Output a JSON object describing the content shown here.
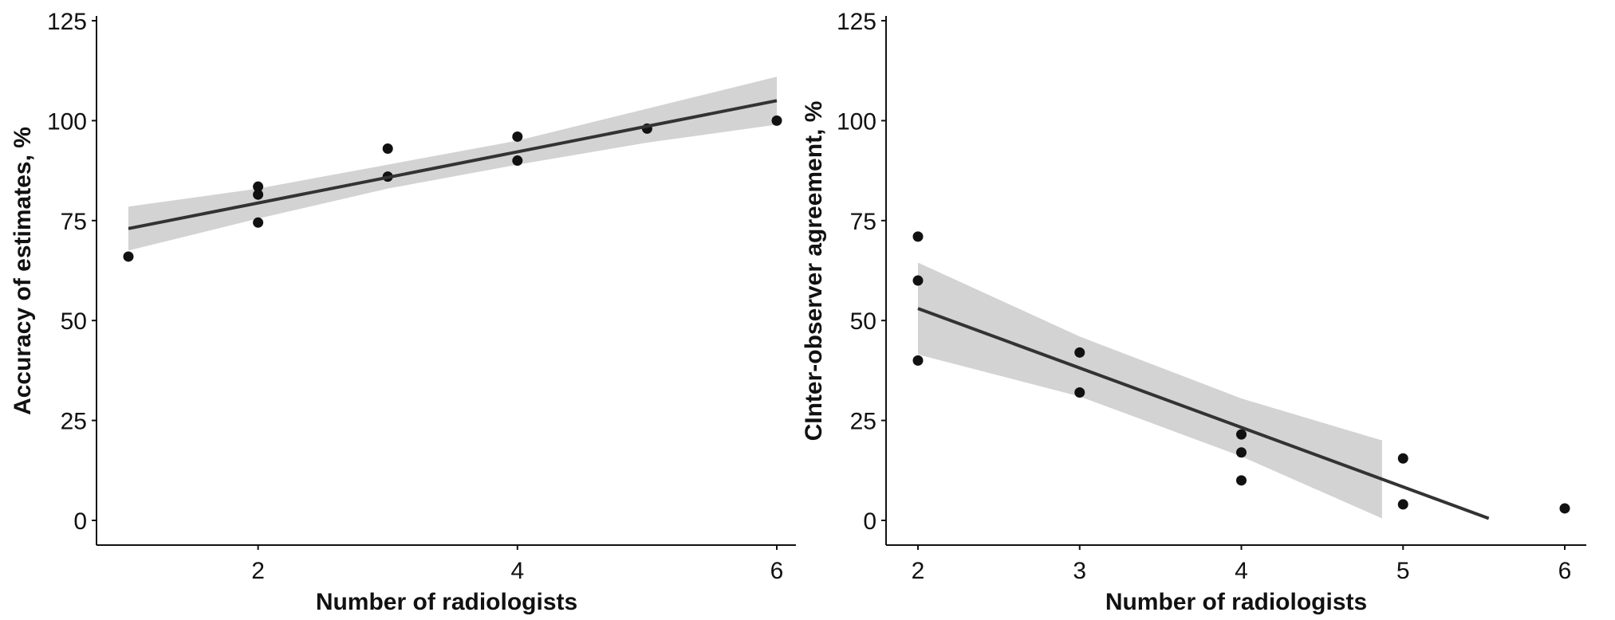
{
  "chart_data": [
    {
      "type": "scatter",
      "title": "",
      "xlabel": "Number of radiologists",
      "ylabel": "Accuracy of estimates, %",
      "xlim": [
        0.95,
        6.1
      ],
      "ylim": [
        -6,
        126
      ],
      "xticks": [
        2,
        4,
        6
      ],
      "yticks": [
        0,
        25,
        50,
        75,
        100,
        125
      ],
      "grid": false,
      "points": [
        [
          1,
          66
        ],
        [
          2,
          83.5
        ],
        [
          2,
          81.5
        ],
        [
          2,
          74.5
        ],
        [
          3,
          93
        ],
        [
          3,
          86
        ],
        [
          4,
          96
        ],
        [
          4,
          90
        ],
        [
          5,
          98
        ],
        [
          6,
          100
        ]
      ],
      "fit_line": [
        [
          1,
          73
        ],
        [
          6,
          105
        ]
      ],
      "confidence_band": {
        "x": [
          1,
          2,
          3,
          4,
          5,
          6
        ],
        "lower": [
          67.5,
          75.5,
          83,
          89,
          94.5,
          99
        ],
        "upper": [
          78.5,
          83,
          89,
          95,
          103,
          111
        ]
      }
    },
    {
      "type": "scatter",
      "title": "",
      "xlabel": "Number of radiologists",
      "ylabel": "CInter-observer agreement, %",
      "xlim": [
        1.8,
        6.15
      ],
      "ylim": [
        -6,
        126
      ],
      "xticks": [
        2,
        3,
        4,
        5,
        6
      ],
      "yticks": [
        0,
        25,
        50,
        75,
        100,
        125
      ],
      "grid": false,
      "points": [
        [
          2,
          71
        ],
        [
          2,
          60
        ],
        [
          2,
          40
        ],
        [
          3,
          42
        ],
        [
          3,
          32
        ],
        [
          4,
          21.5
        ],
        [
          4,
          17
        ],
        [
          4,
          10
        ],
        [
          5,
          15.5
        ],
        [
          5,
          4
        ],
        [
          6,
          3
        ]
      ],
      "fit_line": [
        [
          2,
          53
        ],
        [
          5.53,
          0.5
        ]
      ],
      "confidence_band": {
        "x": [
          2,
          3,
          4,
          4.87
        ],
        "lower": [
          41.5,
          31,
          16,
          0.5
        ],
        "upper": [
          64.5,
          46,
          30.5,
          20
        ]
      }
    }
  ]
}
